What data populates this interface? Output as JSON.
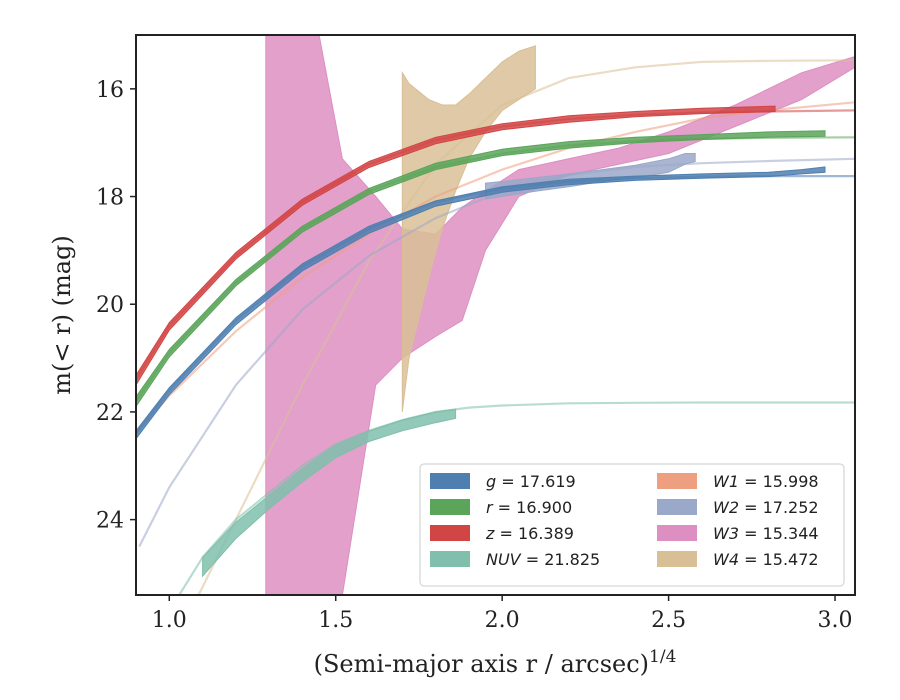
{
  "chart_data": {
    "type": "line",
    "xlabel": "(Semi-major axis r / arcsec)",
    "xlabel_sup": "1/4",
    "ylabel": "m(< r) (mag)",
    "xlim": [
      0.9,
      3.06
    ],
    "ylim": [
      25.4,
      15.0
    ],
    "y_inverted": true,
    "grid": false,
    "legend_placement": "lower-right",
    "x_ticks": [
      1.0,
      1.5,
      2.0,
      2.5,
      3.0
    ],
    "x_tick_labels": [
      "1.0",
      "1.5",
      "2.0",
      "2.5",
      "3.0"
    ],
    "y_ticks": [
      16,
      18,
      20,
      22,
      24
    ],
    "y_tick_labels": [
      "16",
      "18",
      "20",
      "22",
      "24"
    ],
    "series": [
      {
        "name": "W3",
        "label_value": "15.344",
        "color": "#dd8fc2",
        "model": {
          "x": [],
          "y": []
        },
        "band": {
          "x": [
            1.29,
            1.45,
            1.52,
            1.62,
            1.7,
            1.8,
            1.88,
            1.95,
            2.05,
            2.2,
            2.35,
            2.5,
            2.7,
            2.9,
            3.06
          ],
          "y_upper": [
            15.0,
            15.0,
            17.3,
            18.0,
            18.6,
            18.7,
            18.2,
            17.9,
            17.5,
            17.3,
            17.1,
            16.8,
            16.3,
            15.7,
            15.4
          ],
          "y_lower": [
            25.4,
            25.4,
            25.4,
            21.5,
            21.0,
            20.6,
            20.3,
            19.0,
            18.0,
            17.6,
            17.4,
            17.2,
            16.7,
            16.2,
            15.6
          ]
        },
        "faint_line": false
      },
      {
        "name": "W4",
        "label_value": "15.472",
        "color": "#d9bf96",
        "model": {
          "x": [
            1.0,
            1.2,
            1.4,
            1.6,
            1.8,
            2.0,
            2.2,
            2.4,
            2.6,
            2.8,
            3.06
          ],
          "y": [
            26.5,
            24.0,
            21.5,
            19.2,
            17.4,
            16.3,
            15.8,
            15.6,
            15.5,
            15.48,
            15.47
          ]
        },
        "band": {
          "x": [
            1.7,
            1.72,
            1.78,
            1.82,
            1.86,
            1.9,
            1.95,
            2.0,
            2.05,
            2.1
          ],
          "y_upper": [
            15.7,
            15.9,
            16.2,
            16.3,
            16.3,
            16.1,
            15.8,
            15.5,
            15.3,
            15.2
          ],
          "y_lower": [
            22.0,
            21.0,
            19.5,
            18.6,
            17.9,
            17.3,
            16.8,
            16.4,
            16.2,
            16.0
          ]
        },
        "faint_line": true
      },
      {
        "name": "W1",
        "label_value": "15.998",
        "color": "#ee9f80",
        "model": {
          "x": [
            0.9,
            1.0,
            1.2,
            1.4,
            1.6,
            1.8,
            2.0,
            2.2,
            2.4,
            2.6,
            2.8,
            3.06
          ],
          "y": [
            22.4,
            21.7,
            20.5,
            19.5,
            18.7,
            18.0,
            17.5,
            17.1,
            16.8,
            16.55,
            16.4,
            16.25
          ]
        },
        "band": null,
        "faint_line": true
      },
      {
        "name": "W2",
        "label_value": "17.252",
        "color": "#9aa8c9",
        "model": {
          "x": [
            0.91,
            1.0,
            1.2,
            1.4,
            1.6,
            1.8,
            2.0,
            2.2,
            2.4,
            2.6,
            2.8,
            3.06
          ],
          "y": [
            24.5,
            23.4,
            21.5,
            20.1,
            19.1,
            18.4,
            17.9,
            17.6,
            17.45,
            17.38,
            17.34,
            17.3
          ]
        },
        "band": {
          "x": [
            1.95,
            2.0,
            2.1,
            2.2,
            2.3,
            2.4,
            2.5,
            2.55,
            2.58
          ],
          "y_upper": [
            17.75,
            17.72,
            17.65,
            17.58,
            17.5,
            17.42,
            17.3,
            17.2,
            17.2
          ],
          "y_lower": [
            18.05,
            18.0,
            17.9,
            17.82,
            17.72,
            17.65,
            17.55,
            17.4,
            17.35
          ]
        },
        "faint_line": true
      },
      {
        "name": "NUV",
        "label_value": "21.825",
        "color": "#7fbfab",
        "model": {
          "x": [
            1.02,
            1.1,
            1.2,
            1.3,
            1.4,
            1.5,
            1.6,
            1.7,
            1.8,
            1.9,
            2.0,
            2.2,
            2.4,
            2.6,
            2.8,
            3.06
          ],
          "y": [
            25.5,
            24.7,
            24.0,
            23.5,
            23.0,
            22.6,
            22.35,
            22.15,
            22.0,
            21.92,
            21.88,
            21.84,
            21.83,
            21.825,
            21.825,
            21.825
          ]
        },
        "band": {
          "x": [
            1.1,
            1.2,
            1.3,
            1.4,
            1.5,
            1.6,
            1.7,
            1.8,
            1.86
          ],
          "y_upper": [
            24.7,
            24.05,
            23.55,
            23.05,
            22.62,
            22.35,
            22.15,
            22.0,
            21.95
          ],
          "y_lower": [
            25.05,
            24.35,
            23.8,
            23.3,
            22.85,
            22.55,
            22.35,
            22.2,
            22.12
          ]
        },
        "faint_line": true
      },
      {
        "name": "g",
        "label_value": "17.619",
        "color": "#4f7fb0",
        "model": {
          "x": [
            0.9,
            1.0,
            1.2,
            1.4,
            1.6,
            1.8,
            2.0,
            2.2,
            2.4,
            2.6,
            2.8,
            3.06
          ],
          "y": [
            22.4,
            21.6,
            20.3,
            19.3,
            18.6,
            18.1,
            17.85,
            17.72,
            17.66,
            17.63,
            17.62,
            17.62
          ]
        },
        "band": {
          "x": [
            0.9,
            1.0,
            1.2,
            1.4,
            1.6,
            1.8,
            2.0,
            2.2,
            2.4,
            2.6,
            2.8,
            2.9,
            2.97
          ],
          "y_upper": [
            22.35,
            21.55,
            20.25,
            19.25,
            18.55,
            18.08,
            17.82,
            17.68,
            17.62,
            17.58,
            17.55,
            17.5,
            17.45
          ],
          "y_lower": [
            22.5,
            21.68,
            20.38,
            19.38,
            18.68,
            18.18,
            17.92,
            17.78,
            17.7,
            17.66,
            17.63,
            17.58,
            17.55
          ]
        },
        "faint_line": true
      },
      {
        "name": "r",
        "label_value": "16.900",
        "color": "#5aa55a",
        "model": {
          "x": [
            0.9,
            1.0,
            1.2,
            1.4,
            1.6,
            1.8,
            2.0,
            2.2,
            2.4,
            2.6,
            2.8,
            3.06
          ],
          "y": [
            21.8,
            20.9,
            19.6,
            18.6,
            17.9,
            17.45,
            17.2,
            17.05,
            16.97,
            16.93,
            16.91,
            16.9
          ]
        },
        "band": {
          "x": [
            0.9,
            1.0,
            1.2,
            1.4,
            1.6,
            1.8,
            2.0,
            2.2,
            2.4,
            2.6,
            2.8,
            2.97
          ],
          "y_upper": [
            21.72,
            20.84,
            19.54,
            18.55,
            17.85,
            17.38,
            17.12,
            16.98,
            16.9,
            16.85,
            16.8,
            16.78
          ],
          "y_lower": [
            21.9,
            20.98,
            19.66,
            18.66,
            17.96,
            17.5,
            17.24,
            17.1,
            17.0,
            16.94,
            16.9,
            16.88
          ]
        },
        "faint_line": true
      },
      {
        "name": "z",
        "label_value": "16.389",
        "color": "#d24545",
        "model": {
          "x": [
            0.9,
            1.0,
            1.2,
            1.4,
            1.6,
            1.8,
            2.0,
            2.2,
            2.4,
            2.6,
            2.8,
            3.06
          ],
          "y": [
            21.4,
            20.4,
            19.1,
            18.1,
            17.4,
            16.95,
            16.7,
            16.56,
            16.48,
            16.44,
            16.42,
            16.4
          ]
        },
        "band": {
          "x": [
            0.9,
            1.0,
            1.2,
            1.4,
            1.6,
            1.8,
            2.0,
            2.2,
            2.4,
            2.6,
            2.82
          ],
          "y_upper": [
            21.32,
            20.34,
            19.04,
            18.05,
            17.35,
            16.9,
            16.65,
            16.5,
            16.42,
            16.36,
            16.32
          ],
          "y_lower": [
            21.5,
            20.48,
            19.16,
            18.16,
            17.46,
            17.02,
            16.76,
            16.62,
            16.52,
            16.46,
            16.42
          ]
        },
        "faint_line": true
      }
    ],
    "legend": [
      {
        "symbol": "g",
        "value": "17.619",
        "color": "#4f7fb0"
      },
      {
        "symbol": "r",
        "value": "16.900",
        "color": "#5aa55a"
      },
      {
        "symbol": "z",
        "value": "16.389",
        "color": "#d24545"
      },
      {
        "symbol": "NUV",
        "value": "21.825",
        "color": "#7fbfab"
      },
      {
        "symbol": "W1",
        "value": "15.998",
        "color": "#ee9f80"
      },
      {
        "symbol": "W2",
        "value": "17.252",
        "color": "#9aa8c9"
      },
      {
        "symbol": "W3",
        "value": "15.344",
        "color": "#dd8fc2"
      },
      {
        "symbol": "W4",
        "value": "15.472",
        "color": "#d9bf96"
      }
    ]
  }
}
